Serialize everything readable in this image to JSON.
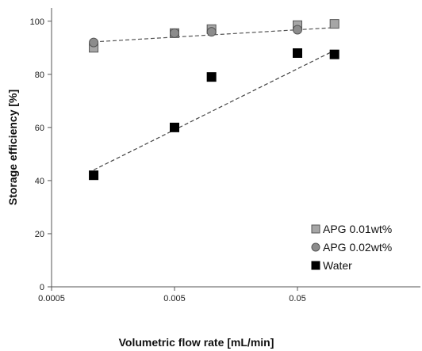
{
  "chart_data": {
    "type": "scatter",
    "title": "",
    "xlabel": "Volumetric flow rate [mL/min]",
    "ylabel": "Storage efficiency [%]",
    "xscale": "log",
    "xlim": [
      0.0005,
      0.5
    ],
    "ylim": [
      0,
      105
    ],
    "x_ticks": [
      0.0005,
      0.005,
      0.05
    ],
    "x_tick_labels": [
      "0.0005",
      "0.005",
      "0.05"
    ],
    "y_ticks": [
      0,
      20,
      40,
      60,
      80,
      100
    ],
    "y_tick_labels": [
      "0",
      "20",
      "40",
      "60",
      "80",
      "100"
    ],
    "grid": false,
    "legend_position": "bottom-right",
    "series": [
      {
        "name": "APG 0.01wt%",
        "marker": "square",
        "color": "#a6a6a6",
        "x": [
          0.0011,
          0.005,
          0.01,
          0.05,
          0.1
        ],
        "y": [
          90,
          95.5,
          97,
          98.5,
          99
        ],
        "trendline": {
          "x": [
            0.0011,
            0.1
          ],
          "y": [
            92.2,
            97.6
          ]
        }
      },
      {
        "name": "APG 0.02wt%",
        "marker": "circle",
        "color": "#8c8c8c",
        "x": [
          0.0011,
          0.005,
          0.01,
          0.05
        ],
        "y": [
          92,
          95.5,
          96,
          96.8
        ],
        "trendline": null
      },
      {
        "name": "Water",
        "marker": "square",
        "color": "#000000",
        "x": [
          0.0011,
          0.005,
          0.01,
          0.05,
          0.1
        ],
        "y": [
          42,
          60,
          79,
          88,
          87.5
        ],
        "trendline": {
          "x": [
            0.0011,
            0.1
          ],
          "y": [
            44,
            89
          ]
        }
      }
    ]
  }
}
